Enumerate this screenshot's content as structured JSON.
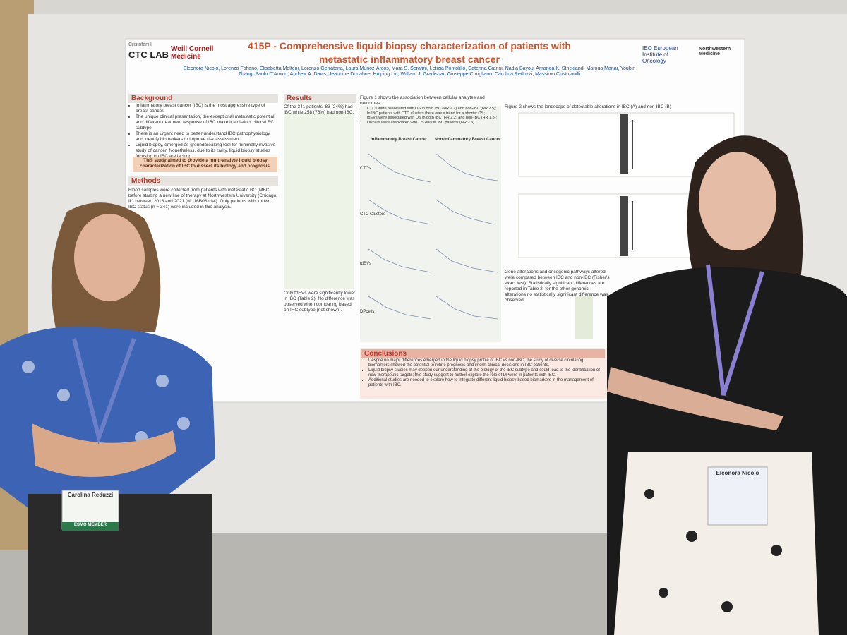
{
  "poster": {
    "logos": {
      "lab_top": "Cristofanilli",
      "lab_main": "CTC LAB",
      "weill": "Weill Cornell Medicine",
      "ieo": "IEO European Institute of Oncology",
      "northwestern": "Northwestern Medicine"
    },
    "title": "415P - Comprehensive liquid biopsy characterization of patients with metastatic inflammatory breast cancer",
    "authors": "Eleonora Nicolò, Lorenzo Foffano, Elisabetta Molteni, Lorenzo Gerratana, Laura Munoz-Arcos, Mara S. Serafini, Letizia Pontolillo, Caterina Gianni, Nadia Bayou, Amanda K. Strickland, Maroua Manai, Youbin Zhang, Paolo D'Amico, Andrew A. Davis, Jeannine Donahue, Huiping Liu, William J. Gradishar, Giuseppe Curigliano, Carolina Reduzzi, Massimo Cristofanilli",
    "background": {
      "heading": "Background",
      "items": [
        "Inflammatory breast cancer (IBC) is the most aggressive type of breast cancer.",
        "The unique clinical presentation, the exceptional metastatic potential, and different treatment response of IBC make it a distinct clinical BC subtype.",
        "There is an urgent need to better understand IBC pathophysiology and identify biomarkers to improve risk assessment.",
        "Liquid biopsy, emerged as groundbreaking tool for minimally invasive study of cancer. Nonetheless, due to its rarity, liquid biopsy studies focusing on IBC are lacking."
      ],
      "aim": "This study aimed to provide a multi-analyte liquid biopsy characterization of IBC to dissect its biology and prognosis."
    },
    "methods": {
      "heading": "Methods",
      "text": "Blood samples were collected from patients with metastatic BC (MBC) before starting a new line of therapy at Northwestern University (Chicago, IL) between 2016 and 2021 (NU16B06 trial). Only patients with known IBC status (n = 341) were included in this analysis."
    },
    "results": {
      "heading": "Results",
      "text": "Of the 341 patients, 83 (24%) had IBC while 258 (76%) had non-IBC.",
      "note": "Only tdEVs were significantly lower in IBC (Table 2). No difference was observed when comparing based on IHC subtype (not shown)."
    },
    "figure1": {
      "intro": "Figure 1 shows the association between cellular analytes and outcomes:",
      "items": [
        "CTCs were associated with OS in both IBC (HR 2.7) and non-IBC (HR 2.5);",
        "In IBC patients with CTC clusters there was a trend for a shorter OS;",
        "tdEVs were associated with OS in both IBC (HR 2.2) and non-IBC (HR 1.8);",
        "DPcells were associated with OS only in IBC patients (HR 2.3)."
      ],
      "col_ibc": "Inflammatory Breast Cancer",
      "col_non": "Non-Inflammatory Breast Cancer",
      "rows": [
        "CTCs",
        "CTC Clusters",
        "tdEVs",
        "DPcells"
      ]
    },
    "figure2": {
      "intro": "Figure 2 shows the landscape of detectable alterations in IBC (A) and non-IBC (B)",
      "text": "Gene alterations and oncogenic pathways altered were compared between IBC and non-IBC (Fisher's exact test). Statistically significant differences are reported in Table 3, for the other genomic alterations no statistically significant difference was observed."
    },
    "conclusions": {
      "heading": "Conclusions",
      "items": [
        "Despite no major differences emerged in the liquid biopsy profile of IBC vs non-IBC, the study of diverse circulating biomarkers showed the potential to refine prognosis and inform clinical decisions in IBC patients.",
        "Liquid biopsy studies may deepen our understanding of the biology of the IBC subtype and could lead to the identification of new therapeutic targets; this study suggest to further explore the role of DPcells in patients with IBC.",
        "Additional studies are needed to explore how to integrate different liquid biopsy-based biomarkers in the management of patients with IBC."
      ]
    }
  },
  "badges": [
    {
      "name": "Carolina Reduzzi",
      "member": "ESMO MEMBER"
    },
    {
      "name": "Eleonora Nicolo"
    }
  ]
}
